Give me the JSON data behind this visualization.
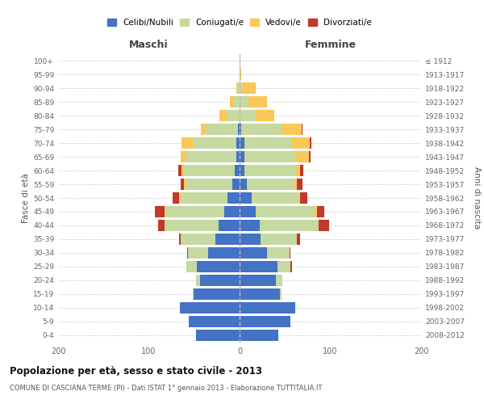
{
  "age_groups": [
    "0-4",
    "5-9",
    "10-14",
    "15-19",
    "20-24",
    "25-29",
    "30-34",
    "35-39",
    "40-44",
    "45-49",
    "50-54",
    "55-59",
    "60-64",
    "65-69",
    "70-74",
    "75-79",
    "80-84",
    "85-89",
    "90-94",
    "95-99",
    "100+"
  ],
  "birth_years": [
    "2008-2012",
    "2003-2007",
    "1998-2002",
    "1993-1997",
    "1988-1992",
    "1983-1987",
    "1978-1982",
    "1973-1977",
    "1968-1972",
    "1963-1967",
    "1958-1962",
    "1953-1957",
    "1948-1952",
    "1943-1947",
    "1938-1942",
    "1933-1937",
    "1928-1932",
    "1923-1927",
    "1918-1922",
    "1913-1917",
    "≤ 1912"
  ],
  "male_celibe": [
    48,
    56,
    66,
    51,
    44,
    47,
    35,
    27,
    23,
    17,
    13,
    8,
    5,
    4,
    4,
    2,
    0,
    0,
    0,
    0,
    0
  ],
  "male_coniugato": [
    0,
    0,
    0,
    1,
    4,
    12,
    22,
    38,
    60,
    65,
    52,
    51,
    56,
    55,
    48,
    35,
    14,
    6,
    2,
    0,
    0
  ],
  "male_vedovo": [
    0,
    0,
    0,
    0,
    0,
    0,
    0,
    0,
    0,
    1,
    2,
    2,
    3,
    6,
    12,
    6,
    8,
    5,
    2,
    0,
    0
  ],
  "male_divorziato": [
    0,
    0,
    0,
    0,
    0,
    0,
    1,
    2,
    7,
    10,
    7,
    4,
    4,
    0,
    0,
    0,
    0,
    0,
    0,
    0,
    0
  ],
  "female_nubile": [
    43,
    56,
    61,
    44,
    40,
    42,
    30,
    23,
    22,
    18,
    13,
    8,
    5,
    5,
    5,
    2,
    0,
    0,
    0,
    0,
    0
  ],
  "female_coniugata": [
    0,
    0,
    0,
    2,
    7,
    14,
    25,
    40,
    65,
    65,
    52,
    52,
    56,
    57,
    52,
    44,
    18,
    10,
    3,
    0,
    0
  ],
  "female_vedova": [
    0,
    0,
    0,
    0,
    0,
    0,
    0,
    0,
    0,
    2,
    2,
    3,
    6,
    14,
    20,
    22,
    20,
    20,
    15,
    2,
    1
  ],
  "female_divorziata": [
    0,
    0,
    0,
    0,
    0,
    2,
    1,
    4,
    12,
    8,
    8,
    6,
    3,
    2,
    2,
    1,
    0,
    0,
    0,
    0,
    0
  ],
  "color_celibe": "#4472C4",
  "color_coniugato": "#C5D9A0",
  "color_vedovo": "#FAC858",
  "color_divorziato": "#C0392B",
  "bg_color": "#FFFFFF",
  "grid_color": "#CCCCCC",
  "title": "Popolazione per età, sesso e stato civile - 2013",
  "subtitle": "COMUNE DI CASCIANA TERME (PI) - Dati ISTAT 1° gennaio 2013 - Elaborazione TUTTITALIA.IT",
  "xlabel_left": "Maschi",
  "xlabel_right": "Femmine",
  "ylabel_left": "Fasce di età",
  "ylabel_right": "Anni di nascita",
  "xlim": 200,
  "legend_labels": [
    "Celibi/Nubili",
    "Coniugati/e",
    "Vedovi/e",
    "Divorziati/e"
  ]
}
